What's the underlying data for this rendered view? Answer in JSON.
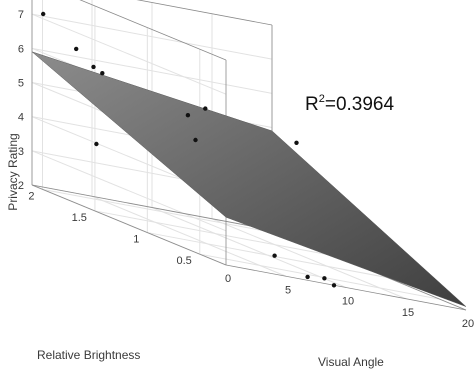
{
  "chart_data": {
    "type": "scatter",
    "subtype": "3d-scatter-with-regression-plane",
    "xlabel": "Visual Angle",
    "ylabel": "Relative Brightness",
    "zlabel": "Privacy Rating",
    "xlim": [
      0,
      20
    ],
    "ylim": [
      0.25,
      2.1
    ],
    "zlim": [
      2,
      8
    ],
    "x_ticks": [
      "0",
      "5",
      "10",
      "15",
      "20"
    ],
    "y_ticks": [
      "0.5",
      "1",
      "1.5",
      "2"
    ],
    "z_ticks": [
      "2",
      "3",
      "4",
      "5",
      "6",
      "7"
    ],
    "grid": true,
    "annotation": {
      "base": "R",
      "superscript": "2",
      "suffix": "=0.3964"
    },
    "plane": {
      "corners": [
        {
          "x": 0,
          "y": 2.1,
          "z": 5.9
        },
        {
          "x": 0,
          "y": 0.25,
          "z": 3.4
        },
        {
          "x": 20,
          "y": 0.25,
          "z": 2.1
        },
        {
          "x": 20,
          "y": 2.1,
          "z": 4.9
        }
      ]
    },
    "points": [
      {
        "x": 0.5,
        "y": 2.05,
        "z": 7.1
      },
      {
        "x": 1.5,
        "y": 1.85,
        "z": 6.4
      },
      {
        "x": 2.5,
        "y": 1.8,
        "z": 6.0
      },
      {
        "x": 2.8,
        "y": 1.75,
        "z": 5.9
      },
      {
        "x": 1.0,
        "y": 1.6,
        "z": 3.9
      },
      {
        "x": 6.0,
        "y": 1.3,
        "z": 5.45
      },
      {
        "x": 6.2,
        "y": 1.25,
        "z": 4.8
      },
      {
        "x": 9.2,
        "y": 1.5,
        "z": 5.6
      },
      {
        "x": 7.7,
        "y": 1.1,
        "z": 4.1
      },
      {
        "x": 9.7,
        "y": 0.9,
        "z": 3.6
      },
      {
        "x": 5.8,
        "y": 0.45,
        "z": 2.4
      },
      {
        "x": 6.8,
        "y": 0.25,
        "z": 2.1
      },
      {
        "x": 8.2,
        "y": 0.25,
        "z": 2.15
      },
      {
        "x": 9.0,
        "y": 0.25,
        "z": 2.0
      },
      {
        "x": 16.8,
        "y": 1.5,
        "z": 5.1
      },
      {
        "x": 16.0,
        "y": 1.2,
        "z": 2.6
      },
      {
        "x": 17.0,
        "y": 1.2,
        "z": 2.5
      },
      {
        "x": 20.0,
        "y": 1.3,
        "z": 3.4
      },
      {
        "x": 20.0,
        "y": 1.6,
        "z": 3.6
      }
    ],
    "colors": {
      "points": "#111111",
      "plane_top": "#8c8c8c",
      "plane_bottom": "#3f3f3f",
      "grid": "#e2e2e2",
      "axes": "#8a8a8a"
    }
  }
}
